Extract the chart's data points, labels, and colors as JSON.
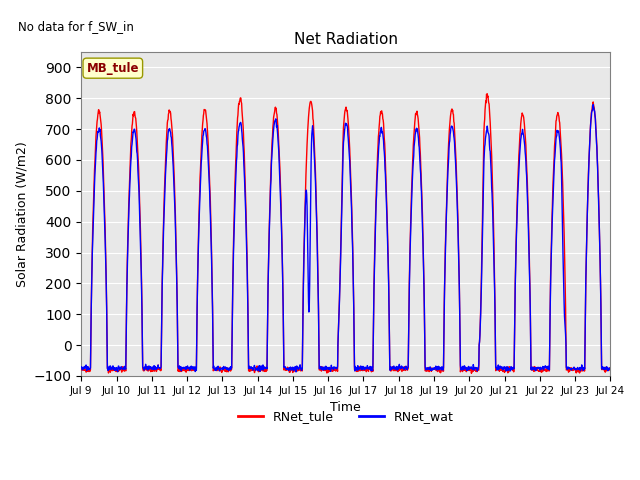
{
  "title": "Net Radiation",
  "text_no_data": "No data for f_SW_in",
  "xlabel": "Time",
  "ylabel": "Solar Radiation (W/m2)",
  "ylim": [
    -100,
    950
  ],
  "yticks": [
    -100,
    0,
    100,
    200,
    300,
    400,
    500,
    600,
    700,
    800,
    900
  ],
  "xtick_labels": [
    "Jul 9",
    "Jul 10",
    "Jul 11",
    "Jul 12",
    "Jul 13",
    "Jul 14",
    "Jul 15",
    "Jul 16",
    "Jul 17",
    "Jul 18",
    "Jul 19",
    "Jul 20",
    "Jul 21",
    "Jul 22",
    "Jul 23",
    "Jul 24"
  ],
  "color_tule": "red",
  "color_wat": "blue",
  "annotation_text": "MB_tule",
  "background_color": "#e8e8e8",
  "line_width": 1.0,
  "night_val_tule": -80,
  "night_val_wat": -75,
  "day_peaks_tule": [
    760,
    755,
    760,
    765,
    800,
    770,
    790,
    770,
    757,
    753,
    761,
    810,
    748,
    750,
    780
  ],
  "day_peaks_wat": [
    700,
    698,
    700,
    703,
    720,
    730,
    740,
    718,
    702,
    700,
    712,
    700,
    692,
    693,
    773
  ]
}
